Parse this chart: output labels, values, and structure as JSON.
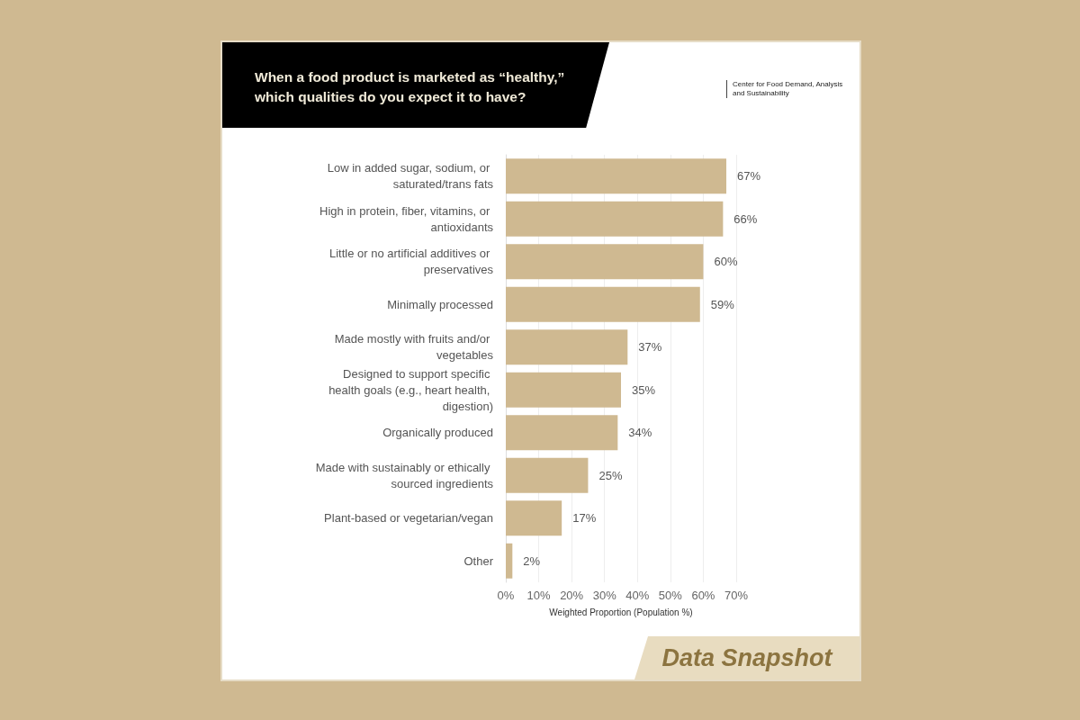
{
  "chart_data": {
    "type": "bar",
    "orientation": "horizontal",
    "title": "When a food product is marketed as “healthy,” which qualities do you expect it to have?",
    "xlabel": "Weighted Proportion (Population %)",
    "categories": [
      "Low in added sugar, sodium, or saturated/trans fats",
      "High in protein, fiber, vitamins, or antioxidants",
      "Little or no artificial additives or preservatives",
      "Minimally processed",
      "Made mostly with fruits and/or vegetables",
      "Designed to support specific health goals (e.g., heart health, digestion)",
      "Organically produced",
      "Made with sustainably or ethically sourced ingredients",
      "Plant-based or vegetarian/vegan",
      "Other"
    ],
    "values": [
      67,
      66,
      60,
      59,
      37,
      35,
      34,
      25,
      17,
      2
    ],
    "value_labels": [
      "67%",
      "66%",
      "60%",
      "59%",
      "37%",
      "35%",
      "34%",
      "25%",
      "17%",
      "2%"
    ],
    "color": "#cfb991",
    "xlim": [
      0,
      70
    ],
    "xticks": [
      {
        "value": 0,
        "label": "0%"
      },
      {
        "value": 10,
        "label": "10%"
      },
      {
        "value": 20,
        "label": "20%"
      },
      {
        "value": 30,
        "label": "30%"
      },
      {
        "value": 40,
        "label": "40%"
      },
      {
        "value": 50,
        "label": "50%"
      },
      {
        "value": 60,
        "label": "60%"
      },
      {
        "value": 70,
        "label": "70%"
      }
    ],
    "grid": "x",
    "annotations": [
      "Center for Food Demand, Analysis and Sustainability",
      "Data Snapshot"
    ]
  }
}
